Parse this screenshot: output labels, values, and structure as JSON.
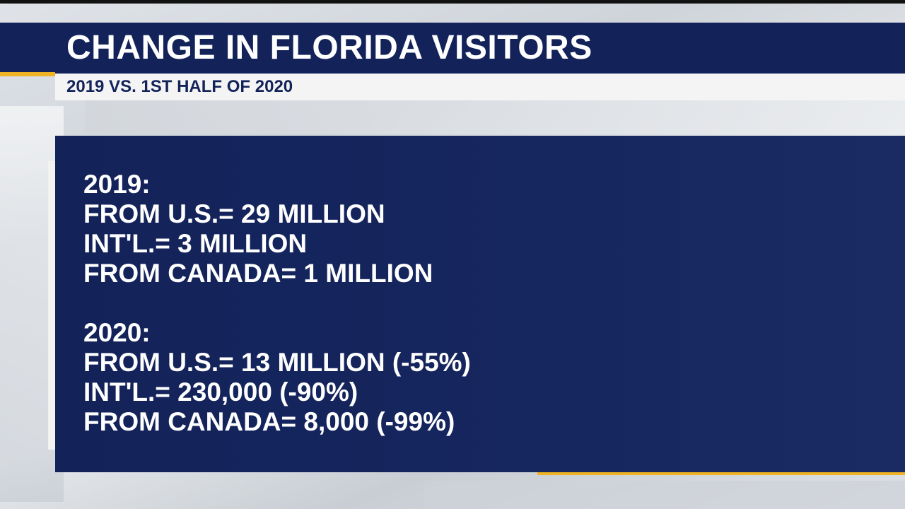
{
  "header": {
    "title": "CHANGE IN FLORIDA VISITORS",
    "subtitle": "2019 VS. 1ST HALF OF 2020"
  },
  "panel": {
    "section_2019": {
      "heading": "2019:",
      "lines": [
        "FROM U.S.=  29 MILLION",
        "INT'L.=  3 MILLION",
        "FROM CANADA=  1 MILLION"
      ]
    },
    "section_2020": {
      "heading": "2020:",
      "lines": [
        "FROM U.S.=  13 MILLION (-55%)",
        "INT'L.=  230,000 (-90%)",
        "FROM CANADA=  8,000 (-99%)"
      ]
    }
  },
  "colors": {
    "navy": "#13235a",
    "accent": "#f0b323",
    "text": "#ffffff"
  }
}
